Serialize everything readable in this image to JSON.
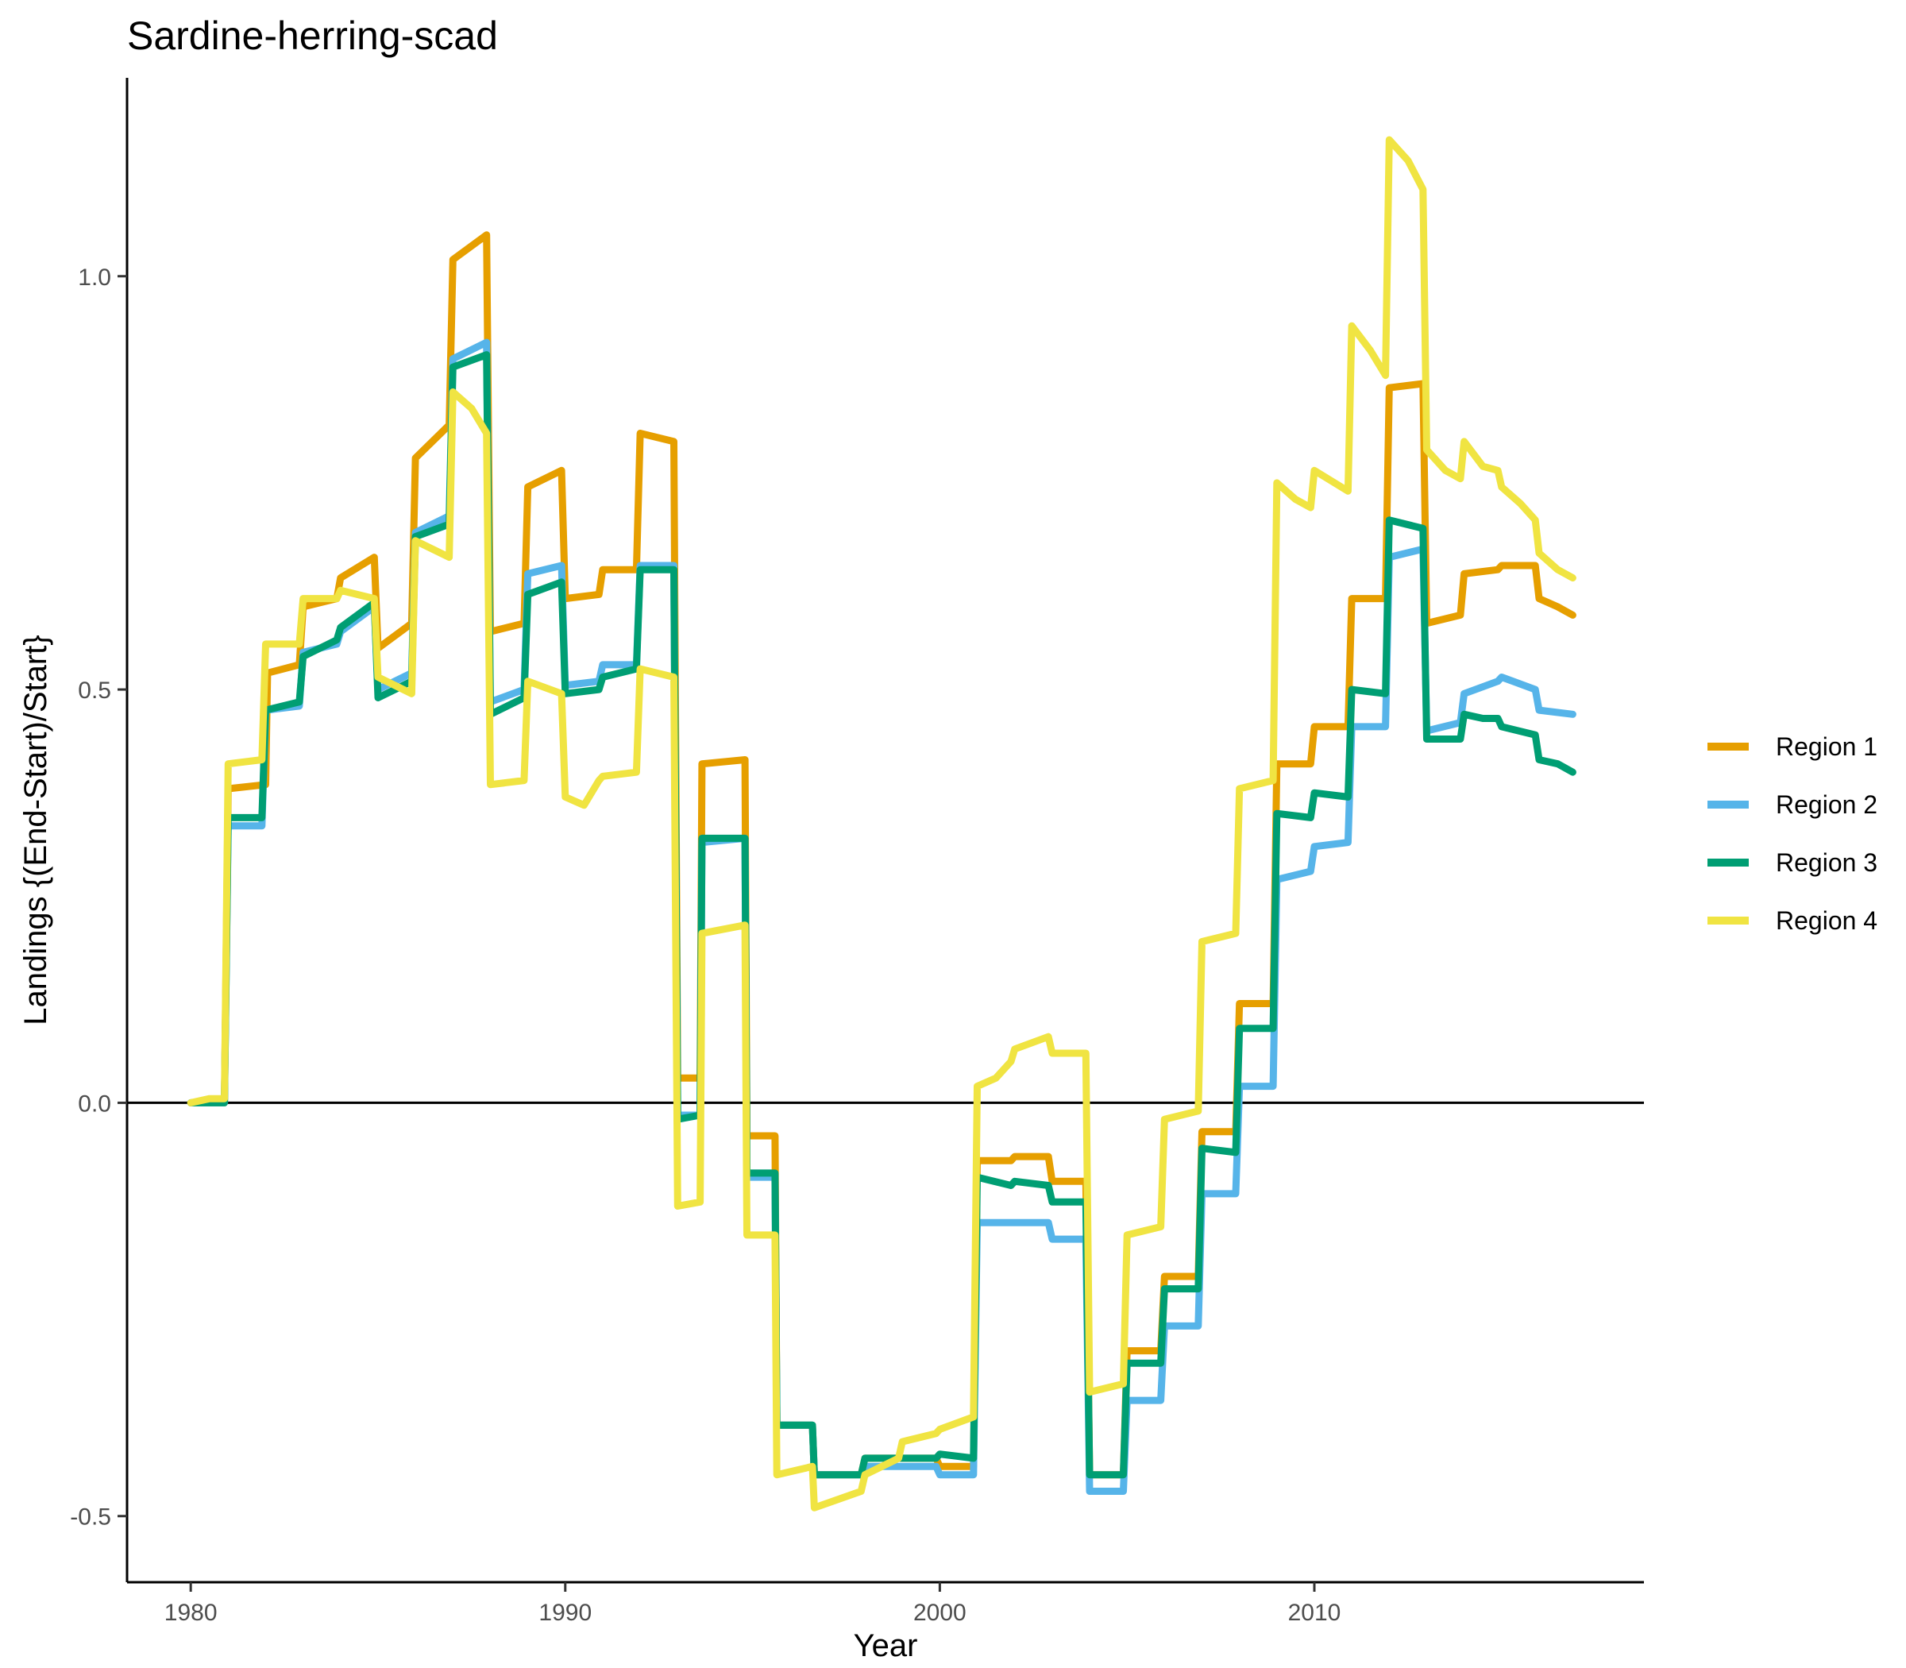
{
  "chart_data": {
    "type": "line",
    "title": "Sardine-herring-scad",
    "xlabel": "Year",
    "ylabel": "Landings {(End-Start)/Start}",
    "xlim": [
      1978.3,
      2018.8
    ],
    "ylim": [
      -0.58,
      1.24
    ],
    "x_ticks": [
      1980,
      1990,
      2000,
      2010
    ],
    "x_tick_labels": [
      "1980",
      "1990",
      "2000",
      "2010"
    ],
    "y_ticks": [
      -0.5,
      0.0,
      0.5,
      1.0
    ],
    "y_tick_labels": [
      "-0.5",
      "0.0",
      "0.5",
      "1.0"
    ],
    "reference_line_y": 0,
    "grid": false,
    "legend_position": "right",
    "series": [
      {
        "name": "Region 1",
        "color": "#E69F00",
        "points": [
          [
            1980,
            0
          ],
          [
            1980.9,
            0
          ],
          [
            1981,
            0.38
          ],
          [
            1982,
            0.385
          ],
          [
            1982.05,
            0.52
          ],
          [
            1982.9,
            0.53
          ],
          [
            1983,
            0.6
          ],
          [
            1983.9,
            0.61
          ],
          [
            1984,
            0.635
          ],
          [
            1984.9,
            0.66
          ],
          [
            1985,
            0.55
          ],
          [
            1985.9,
            0.58
          ],
          [
            1986,
            0.78
          ],
          [
            1986.9,
            0.82
          ],
          [
            1987,
            1.02
          ],
          [
            1987.9,
            1.05
          ],
          [
            1988,
            0.57
          ],
          [
            1988.9,
            0.58
          ],
          [
            1989,
            0.745
          ],
          [
            1989.9,
            0.765
          ],
          [
            1990,
            0.61
          ],
          [
            1990.9,
            0.615
          ],
          [
            1991,
            0.645
          ],
          [
            1991.9,
            0.645
          ],
          [
            1992,
            0.81
          ],
          [
            1992.9,
            0.8
          ],
          [
            1993,
            0.03
          ],
          [
            1993.6,
            0.03
          ],
          [
            1993.65,
            0.41
          ],
          [
            1994.8,
            0.415
          ],
          [
            1994.85,
            -0.04
          ],
          [
            1995.6,
            -0.04
          ],
          [
            1995.65,
            -0.39
          ],
          [
            1996.6,
            -0.39
          ],
          [
            1996.65,
            -0.45
          ],
          [
            1997.9,
            -0.45
          ],
          [
            1998,
            -0.43
          ],
          [
            1999.9,
            -0.43
          ],
          [
            2000,
            -0.44
          ],
          [
            2000.9,
            -0.44
          ],
          [
            2001,
            -0.07
          ],
          [
            2001.9,
            -0.07
          ],
          [
            2002,
            -0.065
          ],
          [
            2002.9,
            -0.065
          ],
          [
            2003,
            -0.095
          ],
          [
            2003.9,
            -0.095
          ],
          [
            2004,
            -0.45
          ],
          [
            2004.9,
            -0.45
          ],
          [
            2005,
            -0.3
          ],
          [
            2005.9,
            -0.3
          ],
          [
            2006,
            -0.21
          ],
          [
            2006.9,
            -0.21
          ],
          [
            2007,
            -0.035
          ],
          [
            2007.9,
            -0.035
          ],
          [
            2008,
            0.12
          ],
          [
            2008.9,
            0.12
          ],
          [
            2009,
            0.41
          ],
          [
            2009.9,
            0.41
          ],
          [
            2010,
            0.455
          ],
          [
            2010.9,
            0.455
          ],
          [
            2011,
            0.61
          ],
          [
            2011.9,
            0.61
          ],
          [
            2012,
            0.865
          ],
          [
            2012.9,
            0.87
          ],
          [
            2013,
            0.58
          ],
          [
            2013.9,
            0.59
          ],
          [
            2014,
            0.64
          ],
          [
            2014.9,
            0.645
          ],
          [
            2015,
            0.65
          ],
          [
            2015.9,
            0.65
          ],
          [
            2016,
            0.61
          ],
          [
            2016.5,
            0.6
          ],
          [
            2016.9,
            0.59
          ]
        ]
      },
      {
        "name": "Region 2",
        "color": "#56B4E9",
        "points": [
          [
            1980,
            0
          ],
          [
            1980.9,
            0
          ],
          [
            1981,
            0.335
          ],
          [
            1981.9,
            0.335
          ],
          [
            1982,
            0.475
          ],
          [
            1982.9,
            0.48
          ],
          [
            1983,
            0.545
          ],
          [
            1983.9,
            0.555
          ],
          [
            1984,
            0.57
          ],
          [
            1984.9,
            0.6
          ],
          [
            1985,
            0.5
          ],
          [
            1985.9,
            0.52
          ],
          [
            1986,
            0.69
          ],
          [
            1986.9,
            0.71
          ],
          [
            1987,
            0.9
          ],
          [
            1987.9,
            0.92
          ],
          [
            1988,
            0.485
          ],
          [
            1988.9,
            0.5
          ],
          [
            1989,
            0.64
          ],
          [
            1989.9,
            0.65
          ],
          [
            1990,
            0.505
          ],
          [
            1990.9,
            0.51
          ],
          [
            1991,
            0.53
          ],
          [
            1991.9,
            0.53
          ],
          [
            1992,
            0.65
          ],
          [
            1992.9,
            0.65
          ],
          [
            1993,
            -0.015
          ],
          [
            1993.6,
            -0.015
          ],
          [
            1993.65,
            0.315
          ],
          [
            1994.8,
            0.32
          ],
          [
            1994.85,
            -0.09
          ],
          [
            1995.6,
            -0.09
          ],
          [
            1995.65,
            -0.39
          ],
          [
            1996.6,
            -0.39
          ],
          [
            1996.65,
            -0.45
          ],
          [
            1997.9,
            -0.45
          ],
          [
            1998,
            -0.44
          ],
          [
            1999.9,
            -0.44
          ],
          [
            2000,
            -0.45
          ],
          [
            2000.9,
            -0.45
          ],
          [
            2001,
            -0.145
          ],
          [
            2001.9,
            -0.145
          ],
          [
            2002,
            -0.145
          ],
          [
            2002.9,
            -0.145
          ],
          [
            2003,
            -0.165
          ],
          [
            2003.9,
            -0.165
          ],
          [
            2004,
            -0.47
          ],
          [
            2004.9,
            -0.47
          ],
          [
            2005,
            -0.36
          ],
          [
            2005.9,
            -0.36
          ],
          [
            2006,
            -0.27
          ],
          [
            2006.9,
            -0.27
          ],
          [
            2007,
            -0.11
          ],
          [
            2007.9,
            -0.11
          ],
          [
            2008,
            0.02
          ],
          [
            2008.9,
            0.02
          ],
          [
            2009,
            0.27
          ],
          [
            2009.9,
            0.28
          ],
          [
            2010,
            0.31
          ],
          [
            2010.9,
            0.315
          ],
          [
            2011,
            0.455
          ],
          [
            2011.9,
            0.455
          ],
          [
            2012,
            0.66
          ],
          [
            2012.9,
            0.67
          ],
          [
            2013,
            0.45
          ],
          [
            2013.9,
            0.46
          ],
          [
            2014,
            0.495
          ],
          [
            2014.9,
            0.51
          ],
          [
            2015,
            0.515
          ],
          [
            2015.9,
            0.5
          ],
          [
            2016,
            0.475
          ],
          [
            2016.9,
            0.47
          ]
        ]
      },
      {
        "name": "Region 3",
        "color": "#009E73",
        "points": [
          [
            1980,
            0
          ],
          [
            1980.9,
            0
          ],
          [
            1981,
            0.345
          ],
          [
            1981.9,
            0.345
          ],
          [
            1982,
            0.475
          ],
          [
            1982.9,
            0.485
          ],
          [
            1983,
            0.54
          ],
          [
            1983.9,
            0.56
          ],
          [
            1984,
            0.575
          ],
          [
            1984.9,
            0.605
          ],
          [
            1985,
            0.49
          ],
          [
            1985.9,
            0.51
          ],
          [
            1986,
            0.685
          ],
          [
            1986.9,
            0.7
          ],
          [
            1987,
            0.89
          ],
          [
            1987.9,
            0.905
          ],
          [
            1988,
            0.47
          ],
          [
            1988.9,
            0.49
          ],
          [
            1989,
            0.615
          ],
          [
            1989.9,
            0.63
          ],
          [
            1990,
            0.495
          ],
          [
            1990.9,
            0.5
          ],
          [
            1991,
            0.515
          ],
          [
            1991.9,
            0.525
          ],
          [
            1992,
            0.645
          ],
          [
            1992.9,
            0.645
          ],
          [
            1993,
            -0.02
          ],
          [
            1993.6,
            -0.015
          ],
          [
            1993.65,
            0.32
          ],
          [
            1994.8,
            0.32
          ],
          [
            1994.85,
            -0.085
          ],
          [
            1995.6,
            -0.085
          ],
          [
            1995.65,
            -0.39
          ],
          [
            1996.6,
            -0.39
          ],
          [
            1996.65,
            -0.45
          ],
          [
            1997.9,
            -0.45
          ],
          [
            1998,
            -0.43
          ],
          [
            1999.9,
            -0.43
          ],
          [
            2000,
            -0.425
          ],
          [
            2000.9,
            -0.43
          ],
          [
            2001,
            -0.09
          ],
          [
            2001.9,
            -0.1
          ],
          [
            2002,
            -0.095
          ],
          [
            2002.9,
            -0.1
          ],
          [
            2003,
            -0.12
          ],
          [
            2003.9,
            -0.12
          ],
          [
            2004,
            -0.45
          ],
          [
            2004.9,
            -0.45
          ],
          [
            2005,
            -0.315
          ],
          [
            2005.9,
            -0.315
          ],
          [
            2006,
            -0.225
          ],
          [
            2006.9,
            -0.225
          ],
          [
            2007,
            -0.055
          ],
          [
            2007.9,
            -0.06
          ],
          [
            2008,
            0.09
          ],
          [
            2008.9,
            0.09
          ],
          [
            2009,
            0.35
          ],
          [
            2009.9,
            0.345
          ],
          [
            2010,
            0.375
          ],
          [
            2010.9,
            0.37
          ],
          [
            2011,
            0.5
          ],
          [
            2011.9,
            0.495
          ],
          [
            2012,
            0.705
          ],
          [
            2012.9,
            0.695
          ],
          [
            2013,
            0.44
          ],
          [
            2013.9,
            0.44
          ],
          [
            2014,
            0.47
          ],
          [
            2014.5,
            0.465
          ],
          [
            2014.9,
            0.465
          ],
          [
            2015,
            0.455
          ],
          [
            2015.9,
            0.445
          ],
          [
            2016,
            0.415
          ],
          [
            2016.5,
            0.41
          ],
          [
            2016.9,
            0.4
          ]
        ]
      },
      {
        "name": "Region 4",
        "color": "#F0E442",
        "points": [
          [
            1980,
            0
          ],
          [
            1980.5,
            0.005
          ],
          [
            1980.9,
            0.005
          ],
          [
            1981,
            0.41
          ],
          [
            1981.9,
            0.415
          ],
          [
            1982,
            0.555
          ],
          [
            1982.9,
            0.555
          ],
          [
            1983,
            0.61
          ],
          [
            1983.9,
            0.61
          ],
          [
            1984,
            0.62
          ],
          [
            1984.9,
            0.61
          ],
          [
            1985,
            0.515
          ],
          [
            1985.9,
            0.495
          ],
          [
            1986,
            0.68
          ],
          [
            1986.9,
            0.66
          ],
          [
            1987,
            0.86
          ],
          [
            1987.5,
            0.84
          ],
          [
            1987.9,
            0.81
          ],
          [
            1988,
            0.385
          ],
          [
            1988.9,
            0.39
          ],
          [
            1989,
            0.51
          ],
          [
            1989.9,
            0.495
          ],
          [
            1990,
            0.37
          ],
          [
            1990.5,
            0.36
          ],
          [
            1990.9,
            0.39
          ],
          [
            1991,
            0.395
          ],
          [
            1991.9,
            0.4
          ],
          [
            1992,
            0.525
          ],
          [
            1992.9,
            0.515
          ],
          [
            1993,
            -0.125
          ],
          [
            1993.6,
            -0.12
          ],
          [
            1993.65,
            0.205
          ],
          [
            1994.8,
            0.215
          ],
          [
            1994.85,
            -0.16
          ],
          [
            1995.6,
            -0.16
          ],
          [
            1995.65,
            -0.45
          ],
          [
            1996.6,
            -0.44
          ],
          [
            1996.65,
            -0.49
          ],
          [
            1997.9,
            -0.47
          ],
          [
            1998,
            -0.45
          ],
          [
            1998.9,
            -0.43
          ],
          [
            1999,
            -0.41
          ],
          [
            1999.9,
            -0.4
          ],
          [
            2000,
            -0.395
          ],
          [
            2000.9,
            -0.38
          ],
          [
            2001,
            0.02
          ],
          [
            2001.5,
            0.03
          ],
          [
            2001.9,
            0.05
          ],
          [
            2002,
            0.065
          ],
          [
            2002.9,
            0.08
          ],
          [
            2003,
            0.06
          ],
          [
            2003.9,
            0.06
          ],
          [
            2004,
            -0.35
          ],
          [
            2004.9,
            -0.34
          ],
          [
            2005,
            -0.16
          ],
          [
            2005.9,
            -0.15
          ],
          [
            2006,
            -0.02
          ],
          [
            2006.9,
            -0.01
          ],
          [
            2007,
            0.195
          ],
          [
            2007.9,
            0.205
          ],
          [
            2008,
            0.38
          ],
          [
            2008.9,
            0.39
          ],
          [
            2009,
            0.75
          ],
          [
            2009.5,
            0.73
          ],
          [
            2009.9,
            0.72
          ],
          [
            2010,
            0.765
          ],
          [
            2010.9,
            0.74
          ],
          [
            2011,
            0.94
          ],
          [
            2011.5,
            0.91
          ],
          [
            2011.9,
            0.88
          ],
          [
            2012,
            1.165
          ],
          [
            2012.5,
            1.14
          ],
          [
            2012.9,
            1.105
          ],
          [
            2013,
            0.79
          ],
          [
            2013.5,
            0.765
          ],
          [
            2013.9,
            0.755
          ],
          [
            2014,
            0.8
          ],
          [
            2014.5,
            0.77
          ],
          [
            2014.9,
            0.765
          ],
          [
            2015,
            0.745
          ],
          [
            2015.5,
            0.725
          ],
          [
            2015.9,
            0.705
          ],
          [
            2016,
            0.665
          ],
          [
            2016.5,
            0.645
          ],
          [
            2016.9,
            0.635
          ]
        ]
      }
    ]
  }
}
